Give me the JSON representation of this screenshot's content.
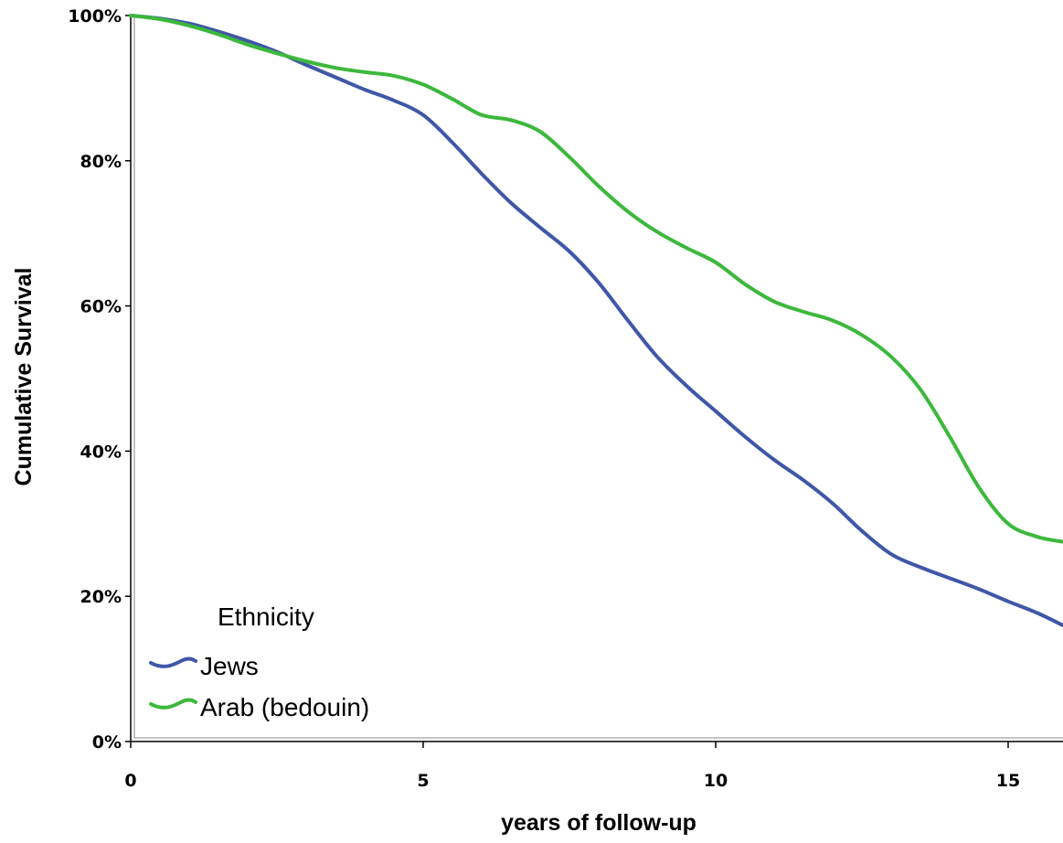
{
  "chart_data": {
    "type": "line",
    "xlabel": "years of follow-up",
    "ylabel": "Cumulative Survival",
    "xlim": [
      0,
      16
    ],
    "ylim": [
      0,
      100
    ],
    "x_ticks": [
      0,
      5,
      10,
      15
    ],
    "x_tick_labels": [
      "0",
      "5",
      "10",
      "15"
    ],
    "y_ticks": [
      0,
      20,
      40,
      60,
      80,
      100
    ],
    "y_tick_labels": [
      "0%",
      "20%",
      "40%",
      "60%",
      "80%",
      "100%"
    ],
    "grid": false,
    "legend": {
      "title": "Ethnicity",
      "placement": "bottom-left"
    },
    "series": [
      {
        "name": "Jews",
        "color": "#3f57a8",
        "x": [
          0,
          0.5,
          1,
          1.5,
          2,
          2.5,
          3,
          3.5,
          4,
          4.5,
          5,
          5.5,
          6,
          6.5,
          7,
          7.5,
          8,
          8.5,
          9,
          9.5,
          10,
          10.5,
          11,
          11.5,
          12,
          12.5,
          13,
          13.5,
          14,
          14.5,
          15,
          15.5,
          16
        ],
        "values": [
          100,
          99.6,
          98.9,
          97.8,
          96.5,
          95.0,
          93.2,
          91.5,
          89.8,
          88.3,
          86.3,
          82.5,
          78.2,
          74.2,
          70.8,
          67.5,
          63.2,
          58.0,
          53.0,
          49.0,
          45.5,
          42.0,
          38.8,
          36.0,
          32.8,
          29.0,
          25.8,
          24.0,
          22.5,
          21.0,
          19.3,
          17.7,
          16.0
        ]
      },
      {
        "name": "Arab (bedouin)",
        "color": "#3cb83c",
        "x": [
          0,
          0.5,
          1,
          1.5,
          2,
          2.5,
          3,
          3.5,
          4,
          4.5,
          5,
          5.5,
          6,
          6.5,
          7,
          7.5,
          8,
          8.5,
          9,
          9.5,
          10,
          10.5,
          11,
          11.5,
          12,
          12.5,
          13,
          13.5,
          14,
          14.5,
          15,
          15.5,
          16
        ],
        "values": [
          100,
          99.5,
          98.6,
          97.4,
          96.0,
          94.8,
          93.7,
          92.8,
          92.2,
          91.7,
          90.5,
          88.5,
          86.3,
          85.6,
          84.0,
          80.5,
          76.5,
          73.0,
          70.2,
          68.0,
          66.0,
          63.0,
          60.6,
          59.2,
          58.0,
          56.0,
          53.0,
          48.5,
          42.0,
          35.0,
          30.0,
          28.2,
          27.5
        ]
      }
    ]
  }
}
